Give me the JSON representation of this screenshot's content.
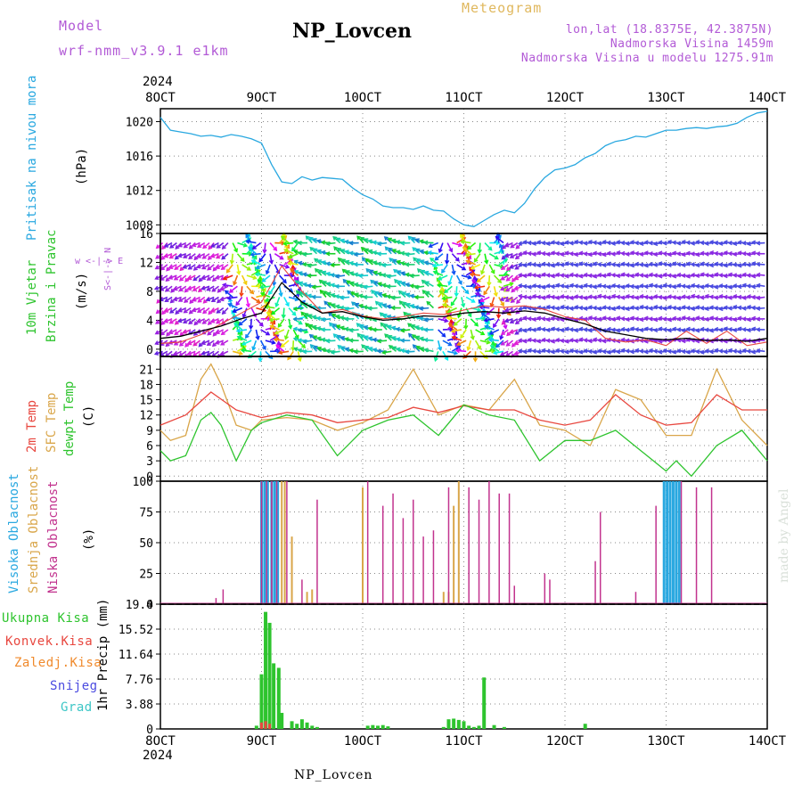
{
  "header": {
    "model_label": "Model",
    "model_name": "wrf-nmm_v3.9.1 e1km",
    "meteogram_label": "Meteogram",
    "station": "NP_Lovcen",
    "coords": "lon,lat (18.8375E, 42.3875N)",
    "altitude": "Nadmorska Visina 1459m",
    "model_altitude": "Nadmorska Visina u modelu 1275.91m",
    "year_top": "2024",
    "year_bottom": "2024",
    "footer_station": "NP_Lovcen",
    "credit": "made by Angel"
  },
  "colors": {
    "pressure": "#29a8e0",
    "temp2m": "#e8473f",
    "sfc": "#d9a64a",
    "dewpt": "#2ec42e",
    "high_cloud": "#29a8e0",
    "mid_cloud": "#d9a64a",
    "low_cloud": "#c2338e",
    "total_precip": "#2ec42e",
    "conv_precip": "#e8473f",
    "frz_precip": "#f08a2c",
    "snow": "#4a4ae0",
    "graupel": "#3cc6c6",
    "wind_speed": "#000000",
    "wind_gust": "#e8473f"
  },
  "panel_labels": {
    "pressure": [
      "Pritisak na nivou mora",
      "(hPa)"
    ],
    "wind": [
      "10m Vjetar",
      "Brzina i Pravac",
      "(m/s)"
    ],
    "wind_dir_axis": "w <-|-> E",
    "wind_dir_axis2": "S<-|-> N",
    "temp": [
      "2m Temp",
      "SFC Temp",
      "dewpt Temp",
      "(C)"
    ],
    "cloud": [
      "Visoka Oblacnost",
      "Srednja Oblacnost",
      "Niska Oblacnost",
      "(%)"
    ],
    "precip_axis": "1hr Precip (mm)",
    "precip_legend": [
      "Ukupna Kisa",
      "Konvek.Kisa",
      "Zaledj.Kisa",
      "Snijeg",
      "Grad"
    ]
  },
  "chart_data": [
    {
      "type": "line",
      "title": "",
      "ylabel": "(hPa)",
      "x_start": "8OCT",
      "x_end": "14OCT",
      "xticks": [
        "8OCT",
        "9OCT",
        "10OCT",
        "11OCT",
        "12OCT",
        "13OCT",
        "14OCT"
      ],
      "yticks": [
        1008,
        1012,
        1016,
        1020
      ],
      "ylim": [
        1007,
        1021.5
      ],
      "grid": true,
      "series": [
        {
          "name": "Pritisak na nivou mora",
          "x_days": [
            0,
            0.1,
            0.2,
            0.3,
            0.4,
            0.5,
            0.6,
            0.7,
            0.8,
            0.9,
            1.0,
            1.1,
            1.2,
            1.3,
            1.4,
            1.5,
            1.6,
            1.7,
            1.8,
            1.9,
            2.0,
            2.1,
            2.2,
            2.3,
            2.4,
            2.5,
            2.6,
            2.7,
            2.8,
            2.9,
            3.0,
            3.1,
            3.2,
            3.3,
            3.4,
            3.5,
            3.6,
            3.7,
            3.8,
            3.9,
            4.0,
            4.1,
            4.2,
            4.3,
            4.4,
            4.5,
            4.6,
            4.7,
            4.8,
            4.9,
            5.0,
            5.1,
            5.2,
            5.3,
            5.4,
            5.5,
            5.6,
            5.7,
            5.8,
            5.9,
            6.0
          ],
          "values": [
            1020.5,
            1019,
            1018.8,
            1018.6,
            1018.3,
            1018.4,
            1018.2,
            1018.5,
            1018.3,
            1018.0,
            1017.5,
            1015.0,
            1013.0,
            1012.8,
            1013.6,
            1013.2,
            1013.5,
            1013.4,
            1013.3,
            1012.3,
            1011.5,
            1011.0,
            1010.2,
            1010.0,
            1010.0,
            1009.8,
            1010.2,
            1009.7,
            1009.6,
            1008.7,
            1008.0,
            1007.8,
            1008.5,
            1009.2,
            1009.7,
            1009.4,
            1010.5,
            1012.2,
            1013.5,
            1014.4,
            1014.6,
            1015.0,
            1015.8,
            1016.3,
            1017.2,
            1017.7,
            1017.9,
            1018.3,
            1018.2,
            1018.6,
            1019.0,
            1019.0,
            1019.2,
            1019.3,
            1019.2,
            1019.4,
            1019.5,
            1019.8,
            1020.5,
            1021.0,
            1021.2
          ]
        }
      ]
    },
    {
      "type": "line",
      "title": "",
      "ylabel": "(m/s)",
      "yticks": [
        0,
        4,
        8,
        12,
        16
      ],
      "ylim": [
        -1,
        16
      ],
      "grid": true,
      "series": [
        {
          "name": "wind speed",
          "x_days": [
            0,
            0.2,
            0.4,
            0.6,
            0.8,
            1.0,
            1.2,
            1.4,
            1.6,
            1.8,
            2.0,
            2.2,
            2.4,
            2.6,
            2.8,
            3.0,
            3.2,
            3.4,
            3.6,
            3.8,
            4.0,
            4.2,
            4.4,
            4.6,
            4.8,
            5.0,
            5.2,
            5.4,
            5.6,
            5.8,
            6.0
          ],
          "values": [
            1.5,
            1.8,
            2.5,
            3.2,
            4.2,
            5.0,
            9.2,
            6.5,
            5.0,
            5.2,
            4.5,
            4.0,
            4.2,
            4.6,
            4.5,
            5.0,
            5.2,
            5.0,
            5.3,
            5.0,
            4.2,
            3.5,
            2.5,
            2.0,
            1.5,
            1.3,
            1.5,
            1.2,
            1.3,
            1.1,
            1.5
          ]
        },
        {
          "name": "gust",
          "x_days": [
            0,
            0.2,
            0.4,
            0.6,
            0.8,
            1.0,
            1.2,
            1.4,
            1.6,
            1.8,
            2.0,
            2.2,
            2.4,
            2.6,
            2.8,
            3.0,
            3.2,
            3.4,
            3.6,
            3.8,
            4.0,
            4.2,
            4.4,
            4.6,
            4.8,
            5.0,
            5.2,
            5.4,
            5.6,
            5.8,
            6.0
          ],
          "values": [
            0.8,
            1.0,
            2.0,
            3.5,
            5.0,
            6.5,
            11.5,
            8.0,
            5.0,
            5.5,
            4.6,
            4.2,
            4.5,
            5.0,
            4.8,
            5.4,
            6.0,
            5.8,
            6.0,
            5.5,
            4.5,
            4.0,
            1.5,
            1.0,
            1.3,
            0.5,
            2.5,
            0.8,
            2.5,
            0.5,
            1.0
          ]
        }
      ]
    },
    {
      "type": "line",
      "title": "",
      "ylabel": "(C)",
      "yticks": [
        0,
        3,
        6,
        9,
        12,
        15,
        18,
        21
      ],
      "ylim": [
        -1,
        23.5
      ],
      "grid": true,
      "series": [
        {
          "name": "2m Temp",
          "x_days": [
            0,
            0.25,
            0.5,
            0.75,
            1.0,
            1.25,
            1.5,
            1.75,
            2.0,
            2.25,
            2.5,
            2.75,
            3.0,
            3.25,
            3.5,
            3.75,
            4.0,
            4.25,
            4.5,
            4.75,
            5.0,
            5.25,
            5.5,
            5.75,
            6.0
          ],
          "values": [
            10,
            12,
            16.5,
            13,
            11.5,
            12.5,
            12,
            10.5,
            11,
            11.5,
            13.5,
            12.5,
            13.8,
            13,
            13,
            11,
            10,
            11,
            16,
            12,
            10,
            10.5,
            16,
            13,
            13
          ]
        },
        {
          "name": "SFC Temp",
          "x_days": [
            0,
            0.1,
            0.25,
            0.4,
            0.5,
            0.6,
            0.75,
            0.9,
            1.0,
            1.25,
            1.5,
            1.75,
            2.0,
            2.25,
            2.5,
            2.75,
            3.0,
            3.25,
            3.5,
            3.75,
            4.0,
            4.25,
            4.5,
            4.75,
            5.0,
            5.25,
            5.5,
            5.75,
            6.0
          ],
          "values": [
            9,
            7,
            8,
            19,
            22,
            18,
            10,
            9,
            11,
            11.5,
            11,
            9,
            10.5,
            13,
            21,
            12,
            14,
            13,
            19,
            10,
            9,
            6,
            17,
            15,
            8,
            8,
            21,
            11,
            6
          ]
        },
        {
          "name": "dewpt Temp",
          "x_days": [
            0,
            0.1,
            0.25,
            0.4,
            0.5,
            0.6,
            0.75,
            0.9,
            1.0,
            1.25,
            1.5,
            1.75,
            2.0,
            2.25,
            2.5,
            2.75,
            3.0,
            3.25,
            3.5,
            3.75,
            4.0,
            4.25,
            4.5,
            4.75,
            5.0,
            5.1,
            5.25,
            5.5,
            5.75,
            6.0
          ],
          "values": [
            5,
            3,
            4,
            11,
            12.5,
            10,
            3,
            9,
            10.5,
            12,
            11,
            4,
            9,
            11,
            12,
            8,
            14,
            12,
            11,
            3,
            7,
            7,
            9,
            5,
            1,
            3,
            0,
            6,
            9,
            3
          ]
        }
      ]
    },
    {
      "type": "bar",
      "title": "",
      "ylabel": "(%)",
      "yticks": [
        0,
        25,
        50,
        75,
        100
      ],
      "ylim": [
        0,
        100
      ],
      "grid": true,
      "series": [
        {
          "name": "Visoka Oblacnost",
          "x_days": [
            1.0,
            1.03,
            1.06,
            1.1,
            1.13,
            1.16,
            4.98,
            5.01,
            5.04,
            5.07,
            5.1,
            5.13
          ],
          "values": [
            100,
            100,
            100,
            100,
            100,
            100,
            100,
            100,
            100,
            100,
            100,
            100
          ]
        },
        {
          "name": "Srednja Oblacnost",
          "x_days": [
            1.2,
            1.23,
            1.3,
            1.45,
            1.5,
            2.0,
            2.8,
            2.85,
            2.9,
            2.95
          ],
          "values": [
            100,
            100,
            55,
            10,
            12,
            95,
            10,
            10,
            80,
            100
          ]
        },
        {
          "name": "Niska Oblacnost",
          "x_days": [
            0.55,
            0.62,
            1.0,
            1.05,
            1.1,
            1.15,
            1.25,
            1.4,
            1.55,
            2.05,
            2.2,
            2.3,
            2.4,
            2.5,
            2.6,
            2.7,
            2.85,
            3.05,
            3.15,
            3.25,
            3.35,
            3.45,
            3.5,
            3.8,
            3.85,
            4.3,
            4.35,
            4.7,
            4.9,
            5.15,
            5.3,
            5.45
          ],
          "values": [
            5,
            12,
            100,
            100,
            100,
            100,
            100,
            20,
            85,
            100,
            80,
            90,
            70,
            85,
            55,
            60,
            95,
            95,
            85,
            100,
            90,
            90,
            15,
            25,
            20,
            35,
            75,
            10,
            80,
            100,
            95,
            95
          ]
        }
      ]
    },
    {
      "type": "bar",
      "title": "",
      "ylabel": "1hr Precip (mm)",
      "xticks": [
        "8OCT",
        "9OCT",
        "10OCT",
        "11OCT",
        "12OCT",
        "13OCT",
        "14OCT"
      ],
      "yticks": [
        0,
        3.88,
        7.76,
        11.64,
        15.52,
        19.4
      ],
      "ylim": [
        0,
        19.4
      ],
      "grid": true,
      "series": [
        {
          "name": "Ukupna Kisa",
          "x_days": [
            0.95,
            1.0,
            1.04,
            1.08,
            1.12,
            1.17,
            1.2,
            1.3,
            1.35,
            1.4,
            1.45,
            1.5,
            1.55,
            2.05,
            2.1,
            2.15,
            2.2,
            2.25,
            2.8,
            2.85,
            2.9,
            2.95,
            3.0,
            3.05,
            3.1,
            3.15,
            3.2,
            3.3,
            3.4,
            4.2
          ],
          "values": [
            0.5,
            8.5,
            18.2,
            16.5,
            10.2,
            9.5,
            2.5,
            1.2,
            0.8,
            1.5,
            1.0,
            0.5,
            0.3,
            0.5,
            0.6,
            0.5,
            0.6,
            0.4,
            0.3,
            1.5,
            1.6,
            1.4,
            1.2,
            0.5,
            0.3,
            0.5,
            8.0,
            0.6,
            0.3,
            0.8
          ]
        },
        {
          "name": "Konvek.Kisa",
          "x_days": [
            1.0,
            1.04,
            1.08
          ],
          "values": [
            1.0,
            1.2,
            0.8
          ]
        }
      ]
    }
  ]
}
